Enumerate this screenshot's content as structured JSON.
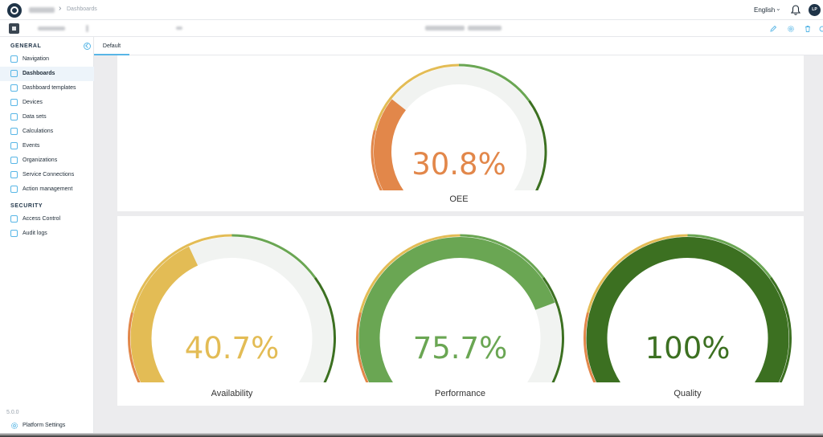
{
  "header": {
    "breadcrumb_current": "Dashboards",
    "language": "English",
    "avatar_initials": "LP"
  },
  "sidebar": {
    "general_title": "GENERAL",
    "security_title": "SECURITY",
    "general_items": [
      {
        "label": "Navigation",
        "icon": "navigation-icon",
        "active": false
      },
      {
        "label": "Dashboards",
        "icon": "dashboard-icon",
        "active": true
      },
      {
        "label": "Dashboard templates",
        "icon": "dashboard-template-icon",
        "active": false
      },
      {
        "label": "Devices",
        "icon": "device-icon",
        "active": false
      },
      {
        "label": "Data sets",
        "icon": "dataset-icon",
        "active": false
      },
      {
        "label": "Calculations",
        "icon": "calculator-icon",
        "active": false
      },
      {
        "label": "Events",
        "icon": "bell-icon",
        "active": false
      },
      {
        "label": "Organizations",
        "icon": "organization-icon",
        "active": false
      },
      {
        "label": "Service Connections",
        "icon": "link-icon",
        "active": false
      },
      {
        "label": "Action management",
        "icon": "clipboard-icon",
        "active": false
      }
    ],
    "security_items": [
      {
        "label": "Access Control",
        "icon": "access-control-icon"
      },
      {
        "label": "Audit logs",
        "icon": "audit-log-icon"
      }
    ],
    "version": "5.0.0",
    "settings_label": "Platform Settings"
  },
  "tabs": {
    "default_label": "Default"
  },
  "gauges": {
    "oee": {
      "value_text": "30.8%",
      "label": "OEE",
      "percent": 30.8,
      "color": "#e2874a"
    },
    "availability": {
      "value_text": "40.7%",
      "label": "Availability",
      "percent": 40.7,
      "color": "#e3bc55"
    },
    "performance": {
      "value_text": "75.7%",
      "label": "Performance",
      "percent": 75.7,
      "color": "#6aa653"
    },
    "quality": {
      "value_text": "100%",
      "label": "Quality",
      "percent": 100,
      "color": "#3c7021"
    }
  },
  "colors": {
    "accent": "#58b6e6",
    "track": "#f1f3f1",
    "zone_red": "#c9474b",
    "zone_orange": "#e2874a",
    "zone_yellow": "#e3bc55",
    "zone_light_green": "#6aa653",
    "zone_dark_green": "#3c7021"
  }
}
